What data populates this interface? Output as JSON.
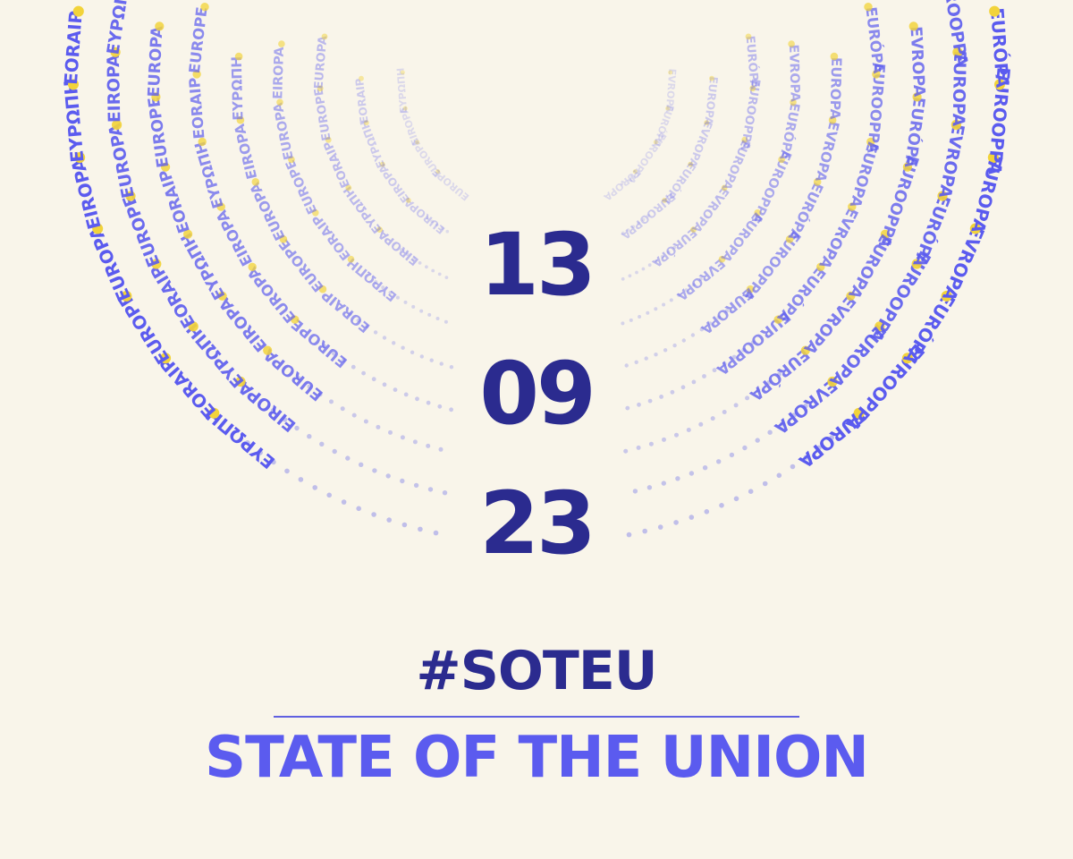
{
  "date": {
    "day": "13",
    "month": "09",
    "year": "23"
  },
  "hashtag": "#SOTEU",
  "title": "STATE OF THE UNION",
  "rings": {
    "left_words": [
      "EUROPE",
      "EUROPA",
      "EIROPA",
      "ΕΥΡΩΠΗ",
      "EORAIP"
    ],
    "right_words": [
      "EUROPA",
      "EUROOPPA",
      "EURÓPA",
      "EVROPA"
    ]
  },
  "colors": {
    "background": "#f9f5ea",
    "date_text": "#2b2b8f",
    "title_text": "#5b5bef",
    "ring_text": "#5b5bef",
    "dot": "#f2d33a"
  }
}
